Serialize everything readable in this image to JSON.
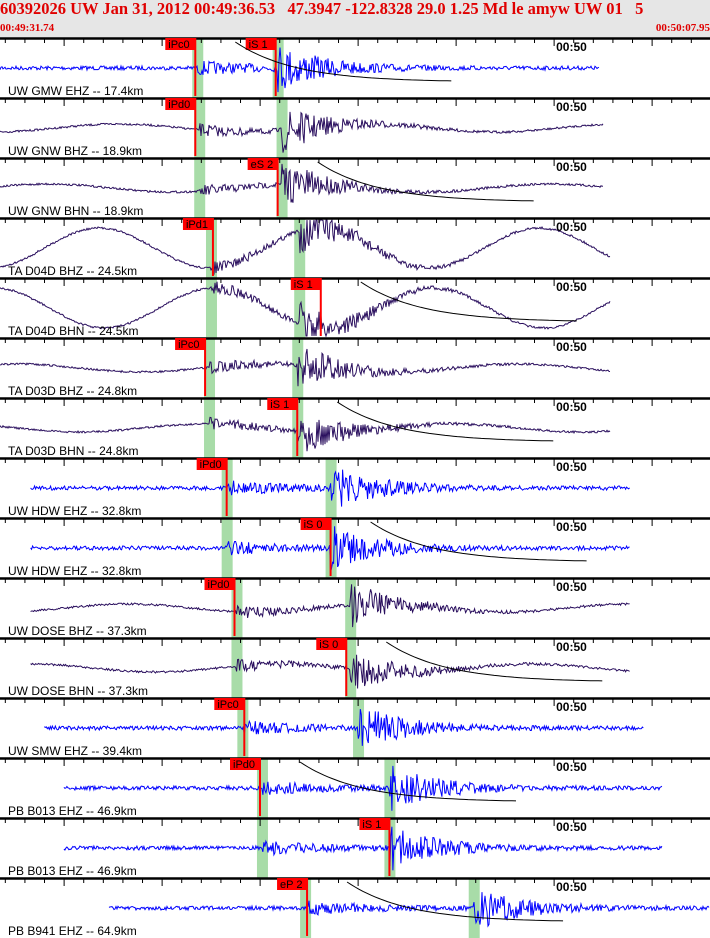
{
  "header": {
    "title": "60392026 UW Jan 31, 2012 00:49:36.53   47.3947 -122.8328 29.0 1.25 Md le amyw UW 01   5",
    "start_time": "00:49:31.74",
    "end_time": "00:50:07.95"
  },
  "chart_data": {
    "type": "line",
    "title": "60392026 UW Jan 31, 2012 00:49:36.53   47.3947 -122.8328 29.0 1.25 Md le amyw UW 01   5",
    "x_range": [
      "00:49:31.74",
      "00:50:07.95"
    ],
    "x_tick_label": "00:50",
    "colors": {
      "pick": "#ff0000",
      "predicted": "#a8dca8",
      "short_period": "#0000ff",
      "broadband": "#2a0f5e"
    },
    "series": [
      {
        "name": "UW GMW EHZ -- 17.4km",
        "type": "short_period",
        "start": "00:49:31.74",
        "end": "00:50:02.3",
        "pick": {
          "label": "iPc0",
          "time": "00:49:41.7"
        },
        "pick2": {
          "label": "iS 1",
          "time": "00:49:45.8"
        },
        "predicted": [
          "00:49:41.8",
          "00:49:45.9"
        ]
      },
      {
        "name": "UW GNW BHZ -- 18.9km",
        "type": "broadband",
        "start": "00:49:31.74",
        "end": "00:50:02.5",
        "pick": {
          "label": "iPd0",
          "time": "00:49:41.7"
        },
        "predicted": [
          "00:49:41.9",
          "00:49:46.1"
        ]
      },
      {
        "name": "UW GNW BHN -- 18.9km",
        "type": "broadband",
        "start": "00:49:31.74",
        "end": "00:50:02.5",
        "pick": {
          "label": "eS 2",
          "time": "00:49:45.9"
        },
        "predicted": [
          "00:49:41.9",
          "00:49:46.1"
        ]
      },
      {
        "name": "TA D04D BHZ -- 24.5km",
        "type": "longperiod",
        "start": "00:49:31.74",
        "end": "00:50:02.9",
        "pick": {
          "label": "iPd1",
          "time": "00:49:42.6"
        },
        "predicted": [
          "00:49:42.5",
          "00:49:47.0"
        ]
      },
      {
        "name": "TA D04D BHN -- 24.5km",
        "type": "longperiod",
        "start": "00:49:31.74",
        "end": "00:50:02.9",
        "pick": {
          "label": "iS 1",
          "time": "00:49:48.1"
        },
        "predicted": [
          "00:49:42.5",
          "00:49:47.0"
        ]
      },
      {
        "name": "TA D03D BHZ -- 24.8km",
        "type": "broadband",
        "start": "00:49:31.74",
        "end": "00:50:02.9",
        "pick": {
          "label": "iPc0",
          "time": "00:49:42.2"
        },
        "predicted": [
          "00:49:42.4",
          "00:49:46.9"
        ]
      },
      {
        "name": "TA D03D BHN -- 24.8km",
        "type": "broadband",
        "start": "00:49:31.74",
        "end": "00:50:02.9",
        "pick": {
          "label": "iS 1",
          "time": "00:49:46.9"
        },
        "predicted": [
          "00:49:42.4",
          "00:49:46.9"
        ]
      },
      {
        "name": "UW HDW EHZ -- 32.8km",
        "type": "short_period",
        "start": "00:49:33.3",
        "end": "00:50:03.9",
        "pick": {
          "label": "iPd0",
          "time": "00:49:43.3"
        },
        "predicted": [
          "00:49:43.3",
          "00:49:48.6"
        ]
      },
      {
        "name": "UW HDW EHZ -- 32.8km",
        "type": "short_period",
        "start": "00:49:33.3",
        "end": "00:50:03.9",
        "pick": {
          "label": "iS 0",
          "time": "00:49:48.6"
        },
        "predicted": [
          "00:49:43.3",
          "00:49:48.6"
        ]
      },
      {
        "name": "UW DOSE BHZ -- 37.3km",
        "type": "broadband",
        "start": "00:49:33.3",
        "end": "00:50:03.9",
        "pick": {
          "label": "iPd0",
          "time": "00:49:43.7"
        },
        "predicted": [
          "00:49:43.8",
          "00:49:49.6"
        ]
      },
      {
        "name": "UW DOSE BHN -- 37.3km",
        "type": "broadband",
        "start": "00:49:33.3",
        "end": "00:50:03.9",
        "pick": {
          "label": "iS 0",
          "time": "00:49:49.4"
        },
        "predicted": [
          "00:49:43.8",
          "00:49:49.6"
        ]
      },
      {
        "name": "UW SMW EHZ -- 39.4km",
        "type": "short_period",
        "start": "00:49:34.0",
        "end": "00:50:04.6",
        "pick": {
          "label": "iPc0",
          "time": "00:49:44.2"
        },
        "predicted": [
          "00:49:44.1",
          "00:49:50.0"
        ]
      },
      {
        "name": "PB B013 EHZ -- 46.9km",
        "type": "short_period",
        "start": "00:49:35.0",
        "end": "00:50:05.5",
        "pick": {
          "label": "iPd0",
          "time": "00:49:45.0"
        },
        "predicted": [
          "00:49:45.1",
          "00:49:51.6"
        ]
      },
      {
        "name": "PB B013 EHZ -- 46.9km",
        "type": "short_period",
        "start": "00:49:35.0",
        "end": "00:50:05.5",
        "pick": {
          "label": "iS 1",
          "time": "00:49:51.6"
        },
        "predicted": [
          "00:49:45.1",
          "00:49:51.6"
        ]
      },
      {
        "name": "PB B941 EHZ -- 64.9km",
        "type": "short_period",
        "start": "00:49:37.3",
        "end": "00:50:07.95",
        "pick": {
          "label": "eP 2",
          "time": "00:49:47.4"
        },
        "predicted": [
          "00:49:47.3",
          "00:49:55.9"
        ]
      }
    ]
  }
}
